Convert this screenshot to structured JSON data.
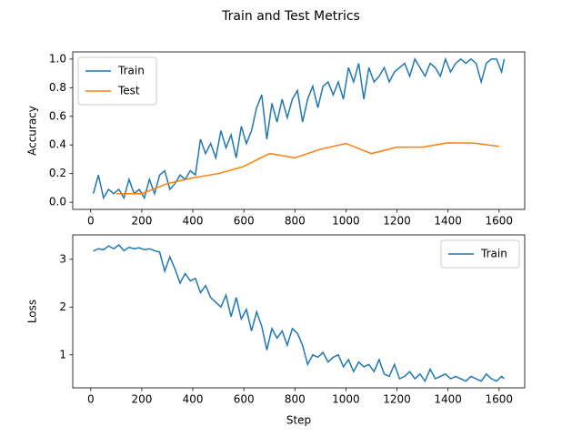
{
  "title": "Train and Test Metrics",
  "chart_data": [
    {
      "type": "line",
      "ylabel": "Accuracy",
      "legend": "upper left",
      "xlim": [
        -70.5,
        1700.5
      ],
      "ylim": [
        -0.05,
        1.05
      ],
      "xticks": [
        0,
        200,
        400,
        600,
        800,
        1000,
        1200,
        1400,
        1600
      ],
      "yticks": [
        {
          "value": 0,
          "label": "0.0"
        },
        0.2,
        0.4,
        0.6,
        0.8,
        {
          "value": 1,
          "label": "1.0"
        }
      ],
      "series": [
        {
          "name": "Train",
          "color": "#1f77b4",
          "x": [
            10,
            30,
            50,
            70,
            90,
            110,
            130,
            150,
            170,
            190,
            210,
            230,
            250,
            270,
            290,
            310,
            330,
            350,
            370,
            390,
            410,
            430,
            450,
            470,
            490,
            510,
            530,
            550,
            570,
            590,
            610,
            630,
            650,
            670,
            690,
            710,
            730,
            750,
            770,
            790,
            810,
            830,
            850,
            870,
            890,
            910,
            930,
            950,
            970,
            990,
            1010,
            1030,
            1050,
            1070,
            1090,
            1110,
            1130,
            1150,
            1170,
            1190,
            1210,
            1230,
            1250,
            1270,
            1290,
            1310,
            1330,
            1350,
            1370,
            1390,
            1410,
            1430,
            1450,
            1470,
            1490,
            1510,
            1530,
            1550,
            1570,
            1590,
            1610,
            1620
          ],
          "values": [
            0.06,
            0.19,
            0.03,
            0.09,
            0.06,
            0.09,
            0.03,
            0.16,
            0.06,
            0.09,
            0.03,
            0.16,
            0.06,
            0.19,
            0.22,
            0.09,
            0.13,
            0.19,
            0.16,
            0.22,
            0.19,
            0.44,
            0.34,
            0.41,
            0.31,
            0.5,
            0.38,
            0.47,
            0.31,
            0.53,
            0.41,
            0.5,
            0.66,
            0.75,
            0.44,
            0.69,
            0.56,
            0.72,
            0.59,
            0.72,
            0.78,
            0.56,
            0.72,
            0.81,
            0.66,
            0.81,
            0.84,
            0.75,
            0.84,
            0.72,
            0.94,
            0.84,
            0.97,
            0.72,
            0.94,
            0.84,
            0.88,
            0.94,
            0.84,
            0.91,
            0.94,
            0.97,
            0.88,
            1.0,
            0.94,
            0.88,
            0.97,
            0.94,
            0.88,
            1.0,
            0.91,
            0.97,
            1.0,
            0.97,
            1.0,
            0.97,
            0.84,
            0.97,
            1.0,
            1.0,
            0.91,
            1.0
          ]
        },
        {
          "name": "Test",
          "color": "#ff7f0e",
          "x": [
            100,
            200,
            300,
            400,
            500,
            600,
            700,
            800,
            900,
            1000,
            1100,
            1200,
            1300,
            1400,
            1500,
            1600
          ],
          "values": [
            0.06,
            0.06,
            0.13,
            0.17,
            0.2,
            0.25,
            0.34,
            0.31,
            0.37,
            0.41,
            0.34,
            0.385,
            0.385,
            0.415,
            0.413,
            0.39
          ]
        }
      ]
    },
    {
      "type": "line",
      "ylabel": "Loss",
      "xlabel": "Step",
      "legend": "upper right",
      "xlim": [
        -70.5,
        1700.5
      ],
      "ylim": [
        0.31,
        3.51
      ],
      "xticks": [
        0,
        200,
        400,
        600,
        800,
        1000,
        1200,
        1400,
        1600
      ],
      "yticks": [
        1,
        2,
        3
      ],
      "series": [
        {
          "name": "Train",
          "color": "#1f77b4",
          "x": [
            10,
            30,
            50,
            70,
            90,
            110,
            130,
            150,
            170,
            190,
            210,
            230,
            250,
            270,
            290,
            310,
            330,
            350,
            370,
            390,
            410,
            430,
            450,
            470,
            490,
            510,
            530,
            550,
            570,
            590,
            610,
            630,
            650,
            670,
            690,
            710,
            730,
            750,
            770,
            790,
            810,
            830,
            850,
            870,
            890,
            910,
            930,
            950,
            970,
            990,
            1010,
            1030,
            1050,
            1070,
            1090,
            1110,
            1130,
            1150,
            1170,
            1190,
            1210,
            1230,
            1250,
            1270,
            1290,
            1310,
            1330,
            1350,
            1370,
            1390,
            1410,
            1430,
            1450,
            1470,
            1490,
            1510,
            1530,
            1550,
            1570,
            1590,
            1610,
            1620
          ],
          "values": [
            3.17,
            3.22,
            3.2,
            3.28,
            3.22,
            3.3,
            3.18,
            3.25,
            3.22,
            3.24,
            3.2,
            3.22,
            3.18,
            3.15,
            2.75,
            3.05,
            2.8,
            2.5,
            2.7,
            2.55,
            2.6,
            2.3,
            2.45,
            2.2,
            2.1,
            2.0,
            2.25,
            1.8,
            2.2,
            1.75,
            1.95,
            1.5,
            1.9,
            1.6,
            1.1,
            1.55,
            1.35,
            1.5,
            1.2,
            1.55,
            1.45,
            1.2,
            0.8,
            1.0,
            0.95,
            1.05,
            0.85,
            0.95,
            1.0,
            0.75,
            0.9,
            0.65,
            0.85,
            0.75,
            0.8,
            0.65,
            0.9,
            0.6,
            0.55,
            0.8,
            0.5,
            0.55,
            0.65,
            0.5,
            0.6,
            0.45,
            0.7,
            0.5,
            0.55,
            0.6,
            0.5,
            0.55,
            0.5,
            0.45,
            0.55,
            0.5,
            0.45,
            0.6,
            0.5,
            0.45,
            0.55,
            0.5
          ]
        }
      ]
    }
  ]
}
